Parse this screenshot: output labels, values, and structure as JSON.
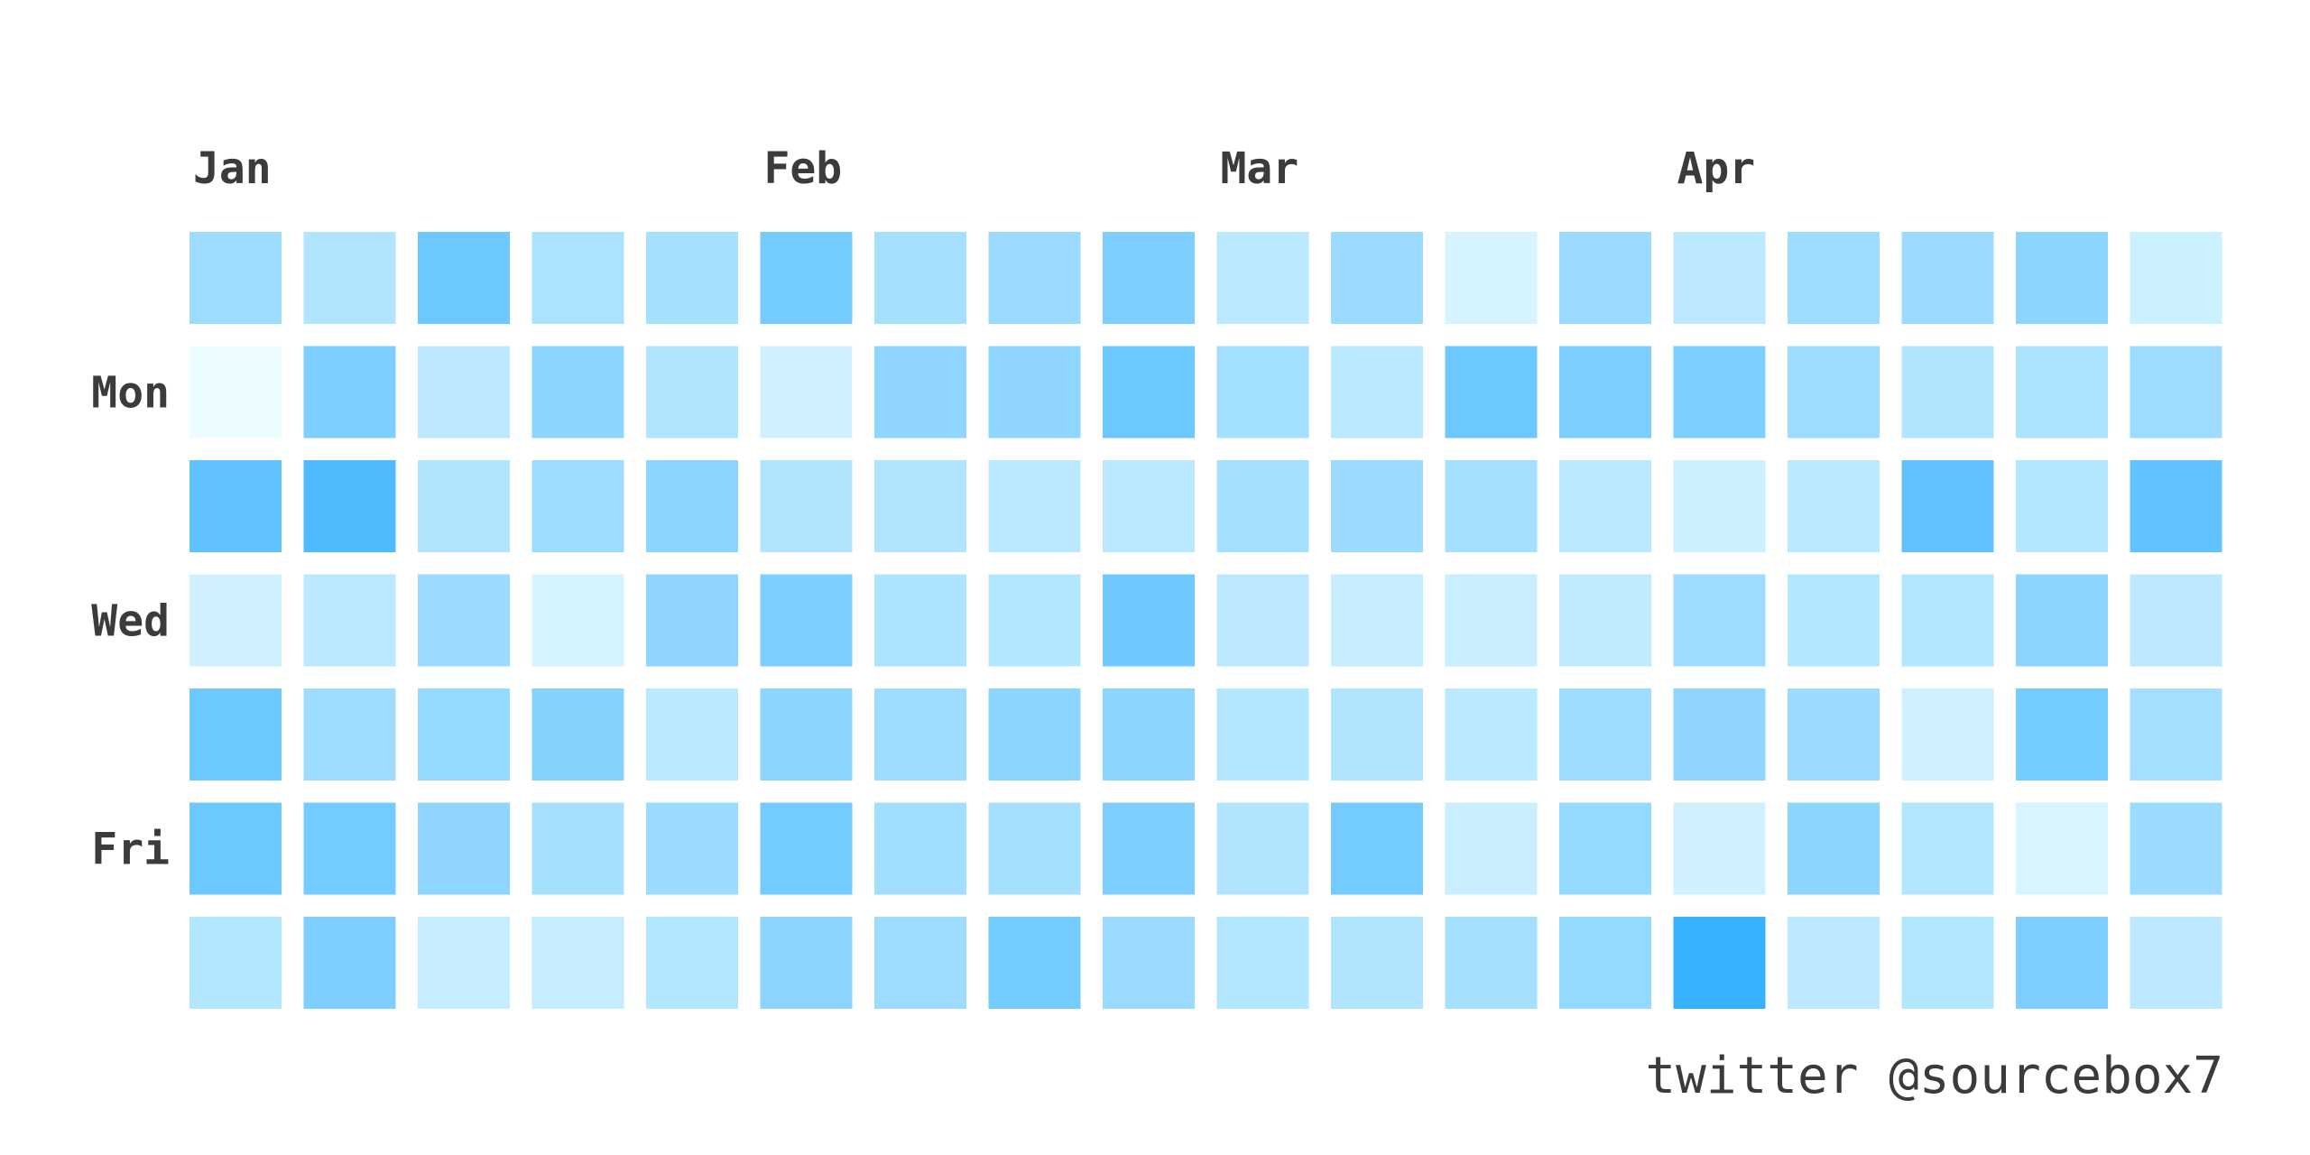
{
  "chart_data": {
    "type": "heatmap",
    "months": [
      "Jan",
      "Feb",
      "Mar",
      "Apr"
    ],
    "month_start_week": [
      0,
      5,
      9,
      13
    ],
    "day_labels": [
      "",
      "Mon",
      "",
      "Wed",
      "",
      "Fri",
      ""
    ],
    "color_scale": {
      "low": "#f0ffff",
      "high": "#38b2ff"
    },
    "values": [
      [
        0.45,
        0.35,
        0.72,
        0.38,
        0.4,
        0.68,
        0.4,
        0.47,
        0.62,
        0.3,
        0.47,
        0.14,
        0.47,
        0.28,
        0.45,
        0.47,
        0.55,
        0.2
      ],
      [
        0.02,
        0.62,
        0.28,
        0.55,
        0.35,
        0.18,
        0.53,
        0.53,
        0.72,
        0.42,
        0.3,
        0.72,
        0.62,
        0.62,
        0.45,
        0.35,
        0.37,
        0.45
      ],
      [
        0.78,
        0.88,
        0.35,
        0.45,
        0.55,
        0.35,
        0.35,
        0.3,
        0.3,
        0.4,
        0.47,
        0.4,
        0.3,
        0.2,
        0.3,
        0.78,
        0.32,
        0.78
      ],
      [
        0.18,
        0.3,
        0.47,
        0.14,
        0.53,
        0.62,
        0.37,
        0.33,
        0.7,
        0.28,
        0.24,
        0.22,
        0.26,
        0.45,
        0.33,
        0.33,
        0.55,
        0.28
      ],
      [
        0.72,
        0.45,
        0.5,
        0.58,
        0.3,
        0.55,
        0.45,
        0.55,
        0.55,
        0.33,
        0.35,
        0.3,
        0.45,
        0.53,
        0.47,
        0.18,
        0.68,
        0.4
      ],
      [
        0.72,
        0.68,
        0.53,
        0.4,
        0.47,
        0.68,
        0.43,
        0.4,
        0.62,
        0.35,
        0.68,
        0.22,
        0.5,
        0.18,
        0.55,
        0.33,
        0.13,
        0.47
      ],
      [
        0.33,
        0.62,
        0.24,
        0.24,
        0.33,
        0.55,
        0.45,
        0.68,
        0.47,
        0.33,
        0.35,
        0.4,
        0.5,
        1.0,
        0.28,
        0.33,
        0.62,
        0.28
      ]
    ]
  },
  "credit": "twitter @sourcebox7"
}
